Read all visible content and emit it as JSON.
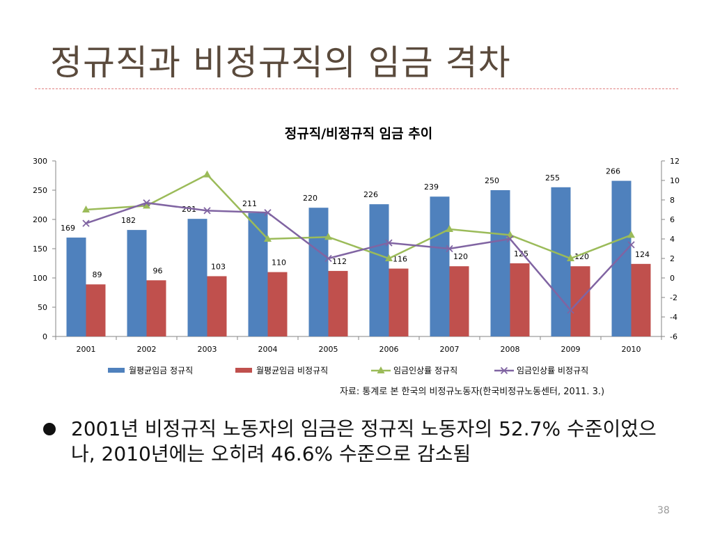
{
  "slide": {
    "title": "정규직과 비정규직의 임금 격차",
    "source": "자료: 통계로 본 한국의 비정규노동자(한국비정규노동센터, 2011. 3.)",
    "bullet": "2001년 비정규직 노동자의 임금은 정규직 노동자의 52.7% 수준이었으나, 2010년에는 오히려 46.6% 수준으로 감소됨",
    "page_number": "38"
  },
  "chart_data": {
    "type": "bar",
    "title": "정규직/비정규직 임금 추이",
    "categories": [
      "2001",
      "2002",
      "2003",
      "2004",
      "2005",
      "2006",
      "2007",
      "2008",
      "2009",
      "2010"
    ],
    "y_left": {
      "ylim": [
        0,
        300
      ],
      "ticks": [
        0,
        50,
        100,
        150,
        200,
        250,
        300
      ]
    },
    "y_right": {
      "ylim": [
        -6,
        12
      ],
      "ticks": [
        -6,
        -4,
        -2,
        0,
        2,
        4,
        6,
        8,
        10,
        12
      ]
    },
    "series": [
      {
        "name": "월평균임금 정규직",
        "kind": "bar",
        "axis": "left",
        "color": "#4f81bd",
        "values": [
          169,
          182,
          201,
          211,
          220,
          226,
          239,
          250,
          255,
          266
        ]
      },
      {
        "name": "월평균임금 비정규직",
        "kind": "bar",
        "axis": "left",
        "color": "#c0504d",
        "values": [
          89,
          96,
          103,
          110,
          112,
          116,
          120,
          125,
          120,
          124
        ]
      },
      {
        "name": "임금인상률 정규직",
        "kind": "line",
        "axis": "right",
        "color": "#9bbb59",
        "marker": "triangle",
        "values": [
          7.0,
          7.4,
          10.6,
          4.0,
          4.2,
          2.0,
          5.0,
          4.4,
          2.0,
          4.4
        ]
      },
      {
        "name": "임금인상률 비정규직",
        "kind": "line",
        "axis": "right",
        "color": "#8064a2",
        "marker": "x",
        "values": [
          5.6,
          7.7,
          6.9,
          6.7,
          2.0,
          3.6,
          3.0,
          4.0,
          -3.3,
          3.4
        ]
      }
    ],
    "legend_position": "bottom",
    "grid": false
  }
}
